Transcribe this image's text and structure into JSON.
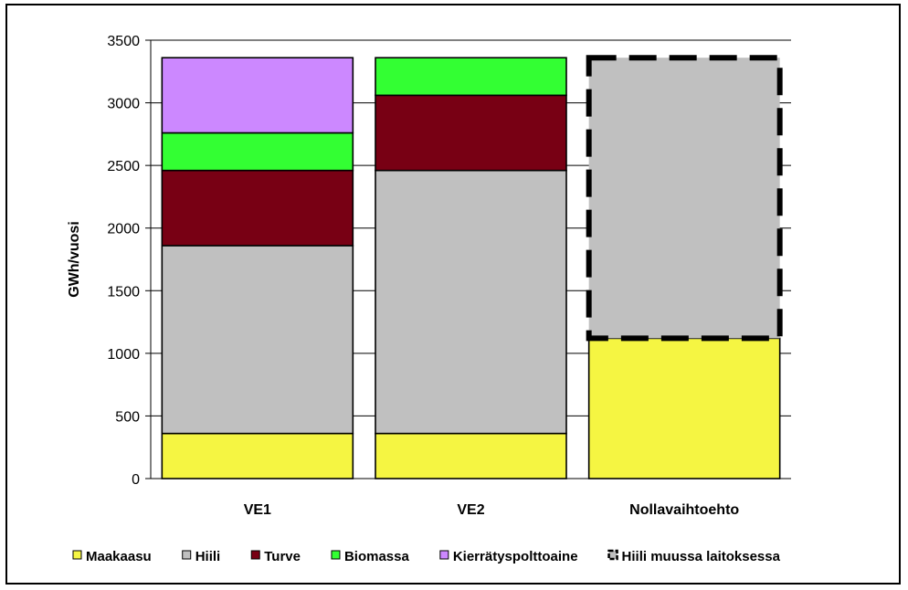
{
  "chart_data": {
    "type": "bar",
    "stacked": true,
    "categories": [
      "VE1",
      "VE2",
      "Nollavaihtoehto"
    ],
    "ylabel": "GWh/vuosi",
    "xlabel": "",
    "ylim": [
      0,
      3500
    ],
    "yticks": [
      0,
      500,
      1000,
      1500,
      2000,
      2500,
      3000,
      3500
    ],
    "grid": true,
    "legend_position": "bottom",
    "series": [
      {
        "name": "Maakaasu",
        "color": "#f5f542",
        "values": [
          360,
          360,
          1120
        ]
      },
      {
        "name": "Hiili",
        "color": "#c0c0c0",
        "values": [
          1500,
          2100,
          0
        ]
      },
      {
        "name": "Turve",
        "color": "#780014",
        "values": [
          600,
          600,
          0
        ]
      },
      {
        "name": "Biomassa",
        "color": "#33ff33",
        "values": [
          300,
          300,
          0
        ]
      },
      {
        "name": "Kierrätyspolttoaine",
        "color": "#cc88ff",
        "values": [
          600,
          0,
          0
        ]
      },
      {
        "name": "Hiili muussa laitoksessa",
        "color": "#c0c0c0",
        "dashed": true,
        "values": [
          0,
          0,
          2240
        ]
      }
    ]
  }
}
